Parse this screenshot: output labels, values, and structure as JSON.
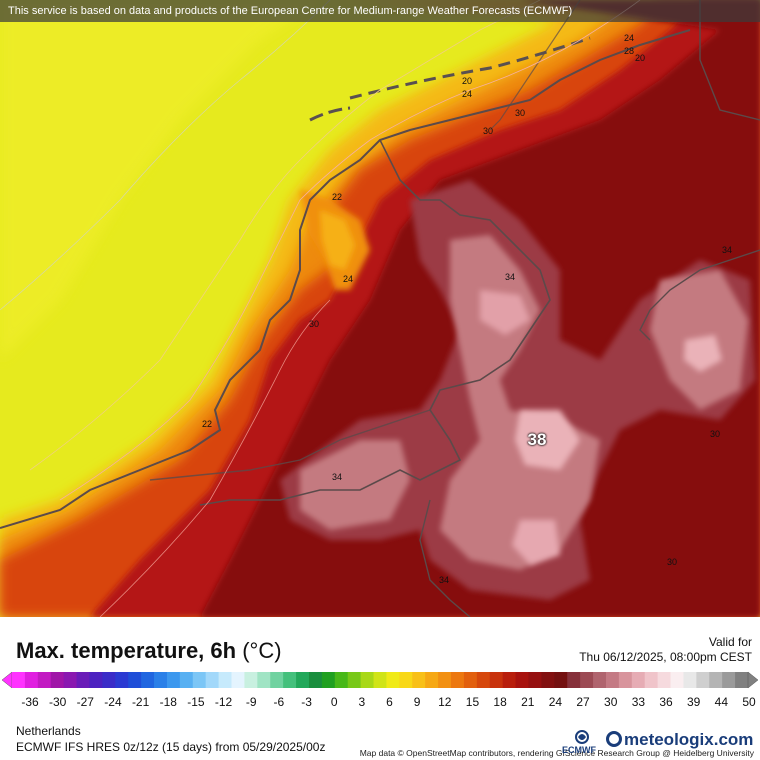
{
  "header": {
    "notice": "This service is based on data and products of the European Centre for Medium-range Weather Forecasts (ECMWF)"
  },
  "map": {
    "attribution": "Map data © OpenStreetMap contributors, rendering GIScience Research Group @ Heidelberg University",
    "max_value_label": "38",
    "contour_labels": [
      "24",
      "20",
      "24",
      "28",
      "20",
      "24",
      "30",
      "22",
      "24",
      "30",
      "34",
      "34",
      "22",
      "34",
      "30",
      "34",
      "30",
      "30"
    ],
    "colors": {
      "sea_yellow": "#e8ea1a",
      "coast_orange": "#f2a814",
      "inland_red": "#b01010",
      "dark_red": "#7e0e0e",
      "pink_hot": "#c47a80",
      "pink_max": "#eab2b8"
    }
  },
  "footer": {
    "title": "Max. temperature, 6h",
    "unit": "(°C)",
    "valid_label": "Valid for",
    "valid_time": "Thu 06/12/2025, 08:00pm CEST",
    "region": "Netherlands",
    "model_info": "ECMWF IFS HRES 0z/12z (15 days) from 05/29/2025/00z",
    "ecmwf_logo_text": "ECMWF",
    "brand": "meteologix.com"
  },
  "legend": {
    "ticks": [
      "-36",
      "-30",
      "-27",
      "-24",
      "-21",
      "-18",
      "-15",
      "-12",
      "-9",
      "-6",
      "-3",
      "0",
      "3",
      "6",
      "9",
      "12",
      "15",
      "18",
      "21",
      "24",
      "27",
      "30",
      "33",
      "36",
      "39",
      "44",
      "50"
    ],
    "colors": [
      "#ff33ff",
      "#e01fe0",
      "#c21ac2",
      "#a016a8",
      "#8a18b0",
      "#6a1cb8",
      "#4c22c0",
      "#3a2cc8",
      "#2a3ad2",
      "#1f4ed8",
      "#2066e0",
      "#2a80e8",
      "#3c98ee",
      "#58b0f2",
      "#7cc6f6",
      "#a2d8fa",
      "#c6eafc",
      "#e4f4fe",
      "#c8f0e0",
      "#a0e4c4",
      "#70d2a0",
      "#44c07c",
      "#22a85a",
      "#1a8e3e",
      "#20a020",
      "#48b818",
      "#78c818",
      "#a8d818",
      "#d0e418",
      "#f0ea18",
      "#f8d818",
      "#f8c018",
      "#f6a814",
      "#f29012",
      "#ec7810",
      "#e2600e",
      "#d6480c",
      "#c8320c",
      "#b81e0c",
      "#a8120e",
      "#961010",
      "#821010",
      "#741010",
      "#86303a",
      "#9c4a54",
      "#b0646e",
      "#c47a84",
      "#d8949c",
      "#e6acb4",
      "#f0c4ca",
      "#f6dade",
      "#faeef0",
      "#e8e8e8",
      "#cfcfcf",
      "#b4b4b4",
      "#9a9a9a",
      "#808080"
    ]
  }
}
